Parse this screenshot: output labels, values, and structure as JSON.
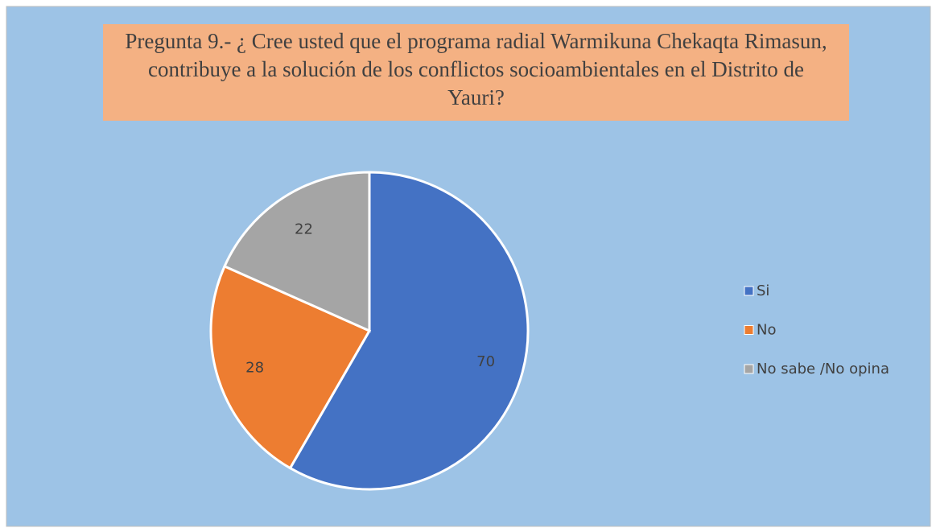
{
  "chart_data": {
    "type": "pie",
    "title": "Pregunta 9.- ¿ Cree usted que el programa radial Warmikuna Chekaqta Rimasun, contribuye a la solución de los conflictos socioambientales en el Distrito de Yauri?",
    "categories": [
      "Si",
      "No",
      "No sabe /No opina"
    ],
    "values": [
      70,
      28,
      22
    ],
    "colors": [
      "#4472c4",
      "#ed7d31",
      "#a5a5a5"
    ],
    "legend": "right"
  }
}
